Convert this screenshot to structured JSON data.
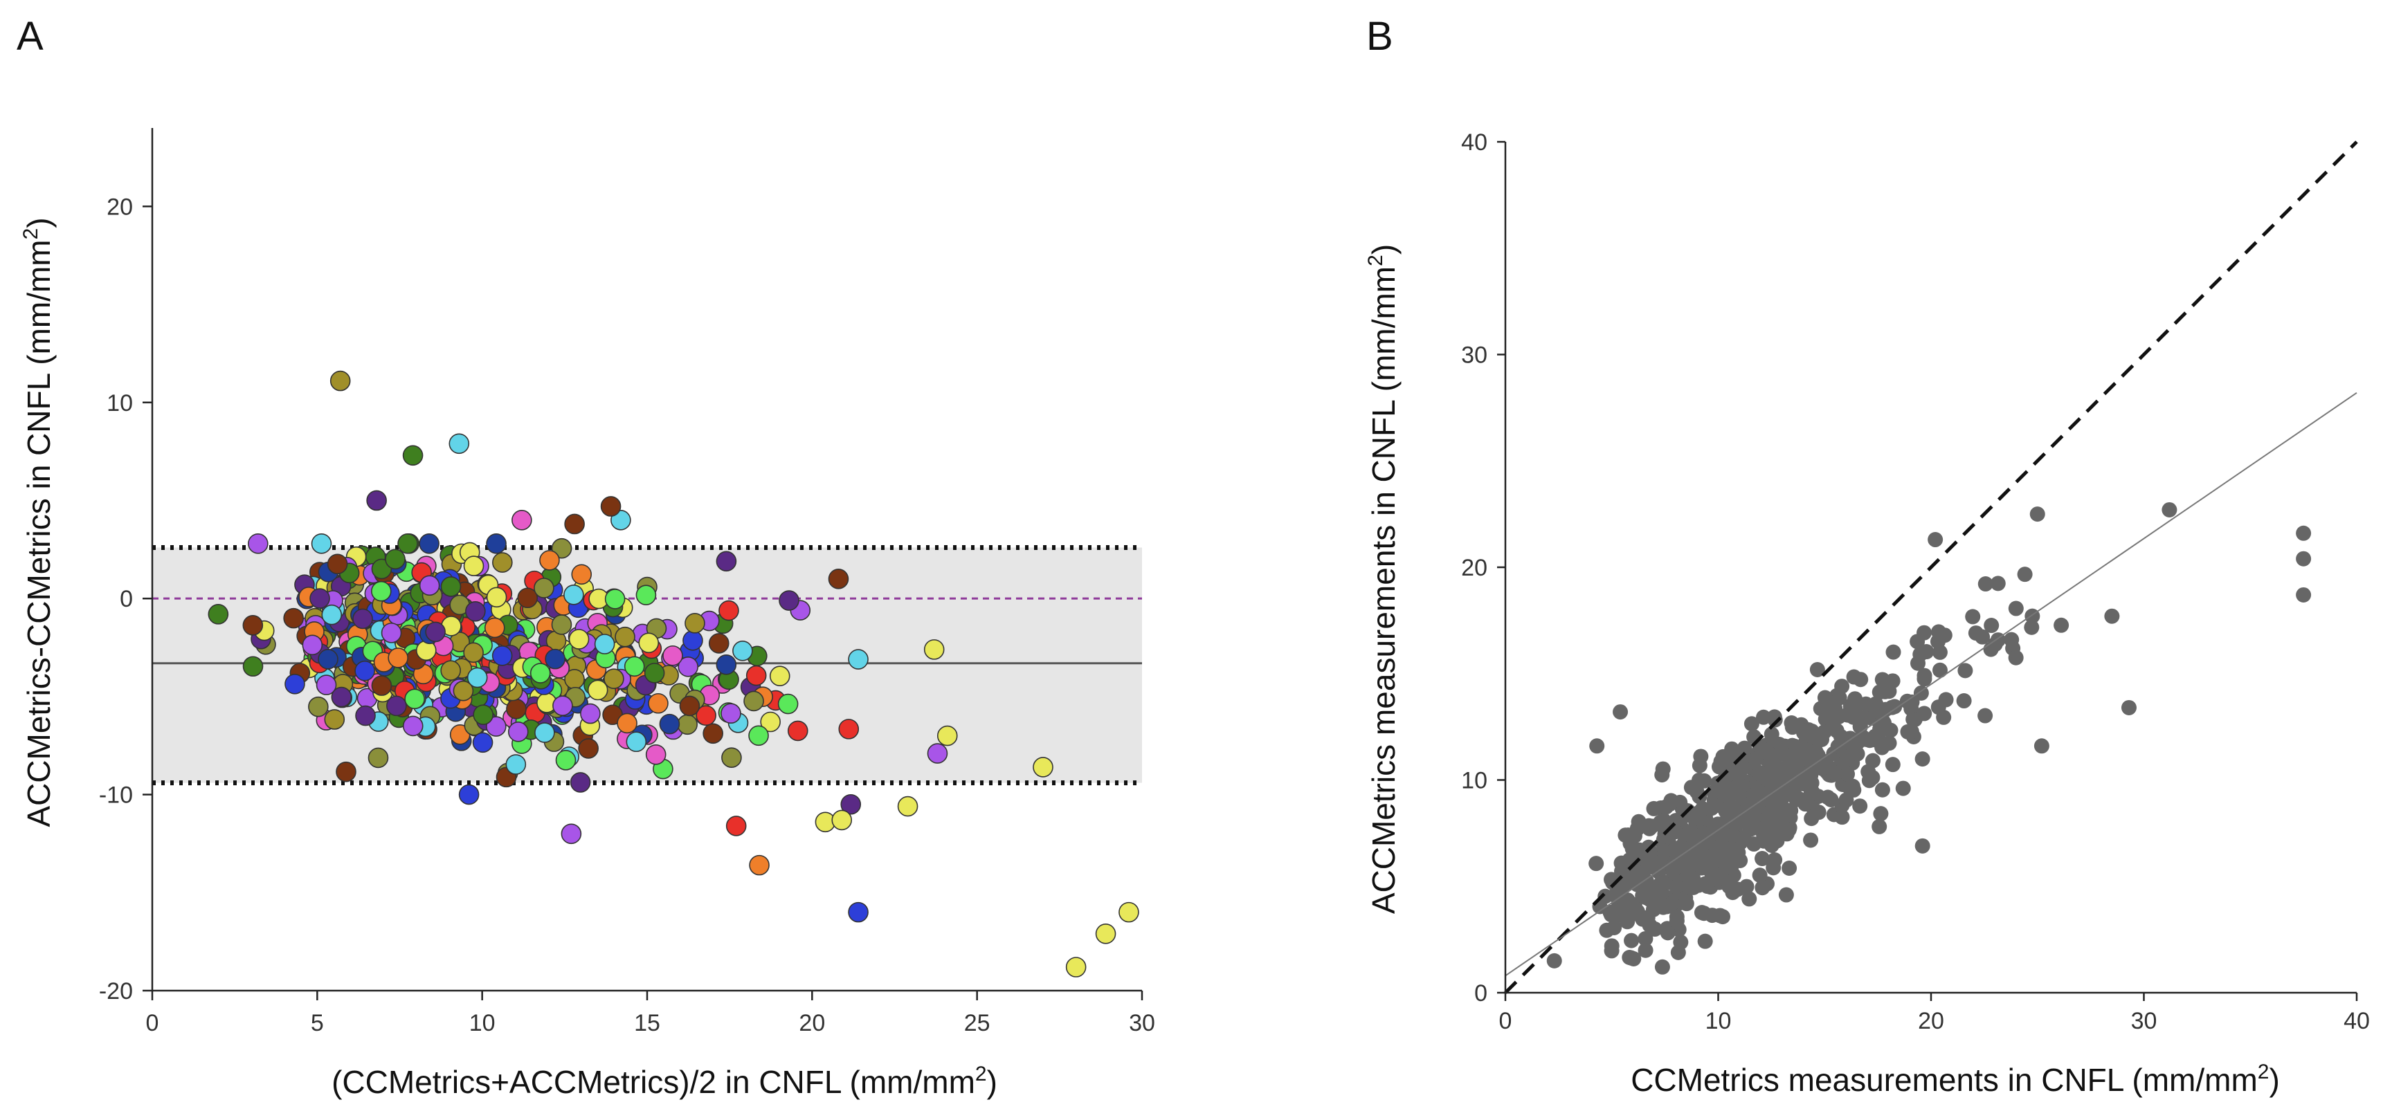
{
  "chart_data": [
    {
      "panel": "A",
      "type": "scatter",
      "subtype": "bland-altman",
      "xlabel_main": "(CCMetrics+ACCMetrics)/2 in CNFL (mm/mm",
      "xlabel_sup": "2",
      "xlabel_end": ")",
      "ylabel_main": "ACCMetrics-CCMetrics in CNFL (mm/mm",
      "ylabel_sup": "2",
      "ylabel_end": ")",
      "xlim": [
        0,
        30
      ],
      "ylim": [
        -20,
        24
      ],
      "xticks": [
        0,
        5,
        10,
        15,
        20,
        25,
        30
      ],
      "yticks": [
        -20,
        -10,
        0,
        10,
        20
      ],
      "mean_difference": -3.3,
      "upper_limit_of_agreement": 2.6,
      "lower_limit_of_agreement": -9.4,
      "zero_line": 0,
      "marker_colors": [
        "#2d3fd8",
        "#3f7f1f",
        "#a08f2a",
        "#7a3412",
        "#5a2a85",
        "#62d4e8",
        "#e8e85a",
        "#e8302a",
        "#a855e8",
        "#5ae85a",
        "#ef7f2a",
        "#e55ac8",
        "#8a8f3a",
        "#1f3f9a"
      ],
      "band_color": "#e6e6e6",
      "mean_line_color": "#555555",
      "zero_line_color": "#8e3a9a",
      "notable_points": [
        {
          "x": 5.7,
          "y": 11.1,
          "color": "#a08f2a"
        },
        {
          "x": 7.9,
          "y": 7.3,
          "color": "#3f7f1f"
        },
        {
          "x": 9.3,
          "y": 7.9,
          "color": "#62d4e8"
        },
        {
          "x": 14.2,
          "y": 4.0,
          "color": "#62d4e8"
        },
        {
          "x": 13.9,
          "y": 4.7,
          "color": "#7a3412"
        },
        {
          "x": 12.8,
          "y": 3.8,
          "color": "#7a3412"
        },
        {
          "x": 11.2,
          "y": 4.0,
          "color": "#e55ac8"
        },
        {
          "x": 6.8,
          "y": 5.0,
          "color": "#5a2a85"
        },
        {
          "x": 17.4,
          "y": 1.9,
          "color": "#5a2a85"
        },
        {
          "x": 20.8,
          "y": 1.0,
          "color": "#7a3412"
        },
        {
          "x": 19.3,
          "y": -0.1,
          "color": "#5a2a85"
        },
        {
          "x": 2.0,
          "y": -0.8,
          "color": "#3f7f1f"
        },
        {
          "x": 21.4,
          "y": -3.1,
          "color": "#62d4e8"
        },
        {
          "x": 23.7,
          "y": -2.6,
          "color": "#e8e85a"
        },
        {
          "x": 9.6,
          "y": -10.0,
          "color": "#2d3fd8"
        },
        {
          "x": 12.7,
          "y": -12.0,
          "color": "#a855e8"
        },
        {
          "x": 17.7,
          "y": -11.6,
          "color": "#e8302a"
        },
        {
          "x": 18.4,
          "y": -13.6,
          "color": "#ef7f2a"
        },
        {
          "x": 20.4,
          "y": -11.4,
          "color": "#e8e85a"
        },
        {
          "x": 20.9,
          "y": -11.3,
          "color": "#e8e85a"
        },
        {
          "x": 22.9,
          "y": -10.6,
          "color": "#e8e85a"
        },
        {
          "x": 21.4,
          "y": -16.0,
          "color": "#2d3fd8"
        },
        {
          "x": 27.0,
          "y": -8.6,
          "color": "#e8e85a"
        },
        {
          "x": 28.0,
          "y": -18.8,
          "color": "#e8e85a"
        },
        {
          "x": 28.9,
          "y": -17.1,
          "color": "#e8e85a"
        },
        {
          "x": 29.6,
          "y": -16.0,
          "color": "#e8e85a"
        },
        {
          "x": 24.1,
          "y": -7.0,
          "color": "#e8e85a"
        },
        {
          "x": 23.8,
          "y": -7.9,
          "color": "#a855e8"
        }
      ],
      "cluster_description": "about 700 points concentrated between x 3-22 with y near -3, spread -10 to +3, diverging downward as x increases"
    },
    {
      "panel": "B",
      "type": "scatter",
      "xlabel_main": "CCMetrics measurements in CNFL (mm/mm",
      "xlabel_sup": "2",
      "xlabel_end": ")",
      "ylabel_main": "ACCMetrics measurements in CNFL (mm/mm",
      "ylabel_sup": "2",
      "ylabel_end": ")",
      "xlim": [
        0,
        40
      ],
      "ylim": [
        0,
        40
      ],
      "xticks": [
        0,
        10,
        20,
        30,
        40
      ],
      "yticks": [
        0,
        10,
        20,
        30,
        40
      ],
      "identity_line": {
        "slope": 1,
        "intercept": 0,
        "style": "dashed"
      },
      "regression_line": {
        "slope": 0.685,
        "intercept": 0.8,
        "style": "solid"
      },
      "marker_color": "#666666",
      "notable_points": [
        {
          "x": 37.5,
          "y": 21.6
        },
        {
          "x": 37.5,
          "y": 20.4
        },
        {
          "x": 37.5,
          "y": 18.7
        },
        {
          "x": 31.2,
          "y": 22.7
        },
        {
          "x": 29.3,
          "y": 13.4
        },
        {
          "x": 28.5,
          "y": 17.7
        },
        {
          "x": 25.0,
          "y": 22.5
        },
        {
          "x": 20.2,
          "y": 21.3
        },
        {
          "x": 5.4,
          "y": 13.2
        },
        {
          "x": 4.3,
          "y": 11.6
        },
        {
          "x": 2.3,
          "y": 1.5
        },
        {
          "x": 5.0,
          "y": 2.2
        },
        {
          "x": 13.2,
          "y": 4.6
        },
        {
          "x": 19.6,
          "y": 6.9
        },
        {
          "x": 25.2,
          "y": 11.6
        }
      ],
      "cluster_description": "about 700 points along the regression line from (3,3) to (27,19), spread roughly +/-3 around the fit"
    }
  ]
}
